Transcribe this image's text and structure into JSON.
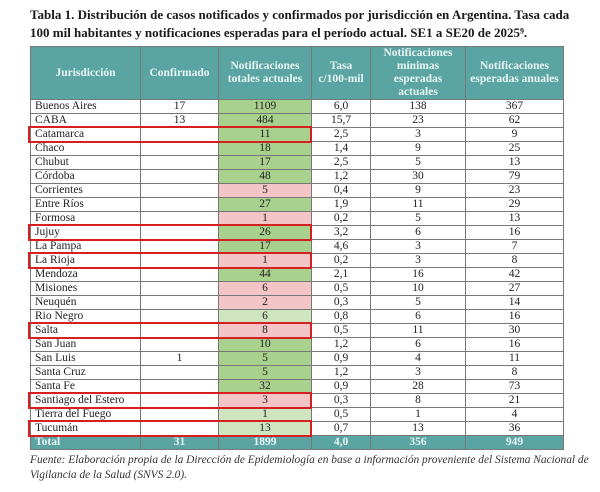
{
  "title": "Tabla 1. Distribución de casos notificados y confirmados por jurisdicción en Argentina. Tasa cada 100 mil habitantes y notificaciones esperadas para el período actual. SE1 a SE20 de 2025⁹.",
  "headers": [
    "Jurisdicción",
    "Confirmado",
    "Notificaciones totales actuales",
    "Tasa c/100-mil",
    "Notificaciones mínimas esperadas actuales",
    "Notificaciones esperadas anuales"
  ],
  "rows": [
    {
      "name": "Buenos Aires",
      "conf": "17",
      "notif": "1109",
      "status": "green",
      "tasa": "6,0",
      "min": "138",
      "anual": "367",
      "highlight": false
    },
    {
      "name": "CABA",
      "conf": "13",
      "notif": "484",
      "status": "green",
      "tasa": "15,7",
      "min": "23",
      "anual": "62",
      "highlight": false
    },
    {
      "name": "Catamarca",
      "conf": "",
      "notif": "11",
      "status": "green",
      "tasa": "2,5",
      "min": "3",
      "anual": "9",
      "highlight": true
    },
    {
      "name": "Chaco",
      "conf": "",
      "notif": "18",
      "status": "green",
      "tasa": "1,4",
      "min": "9",
      "anual": "25",
      "highlight": false
    },
    {
      "name": "Chubut",
      "conf": "",
      "notif": "17",
      "status": "green",
      "tasa": "2,5",
      "min": "5",
      "anual": "13",
      "highlight": false
    },
    {
      "name": "Córdoba",
      "conf": "",
      "notif": "48",
      "status": "green",
      "tasa": "1,2",
      "min": "30",
      "anual": "79",
      "highlight": false
    },
    {
      "name": "Corrientes",
      "conf": "",
      "notif": "5",
      "status": "red",
      "tasa": "0,4",
      "min": "9",
      "anual": "23",
      "highlight": false
    },
    {
      "name": "Entre Ríos",
      "conf": "",
      "notif": "27",
      "status": "green",
      "tasa": "1,9",
      "min": "11",
      "anual": "29",
      "highlight": false
    },
    {
      "name": "Formosa",
      "conf": "",
      "notif": "1",
      "status": "red",
      "tasa": "0,2",
      "min": "5",
      "anual": "13",
      "highlight": false
    },
    {
      "name": "Jujuy",
      "conf": "",
      "notif": "26",
      "status": "green",
      "tasa": "3,2",
      "min": "6",
      "anual": "16",
      "highlight": true
    },
    {
      "name": "La Pampa",
      "conf": "",
      "notif": "17",
      "status": "green",
      "tasa": "4,6",
      "min": "3",
      "anual": "7",
      "highlight": false
    },
    {
      "name": "La Rioja",
      "conf": "",
      "notif": "1",
      "status": "red",
      "tasa": "0,2",
      "min": "3",
      "anual": "8",
      "highlight": true
    },
    {
      "name": "Mendoza",
      "conf": "",
      "notif": "44",
      "status": "green",
      "tasa": "2,1",
      "min": "16",
      "anual": "42",
      "highlight": false
    },
    {
      "name": "Misiones",
      "conf": "",
      "notif": "6",
      "status": "red",
      "tasa": "0,5",
      "min": "10",
      "anual": "27",
      "highlight": false
    },
    {
      "name": "Neuquén",
      "conf": "",
      "notif": "2",
      "status": "red",
      "tasa": "0,3",
      "min": "5",
      "anual": "14",
      "highlight": false
    },
    {
      "name": "Rio Negro",
      "conf": "",
      "notif": "6",
      "status": "light",
      "tasa": "0,8",
      "min": "6",
      "anual": "16",
      "highlight": false
    },
    {
      "name": "Salta",
      "conf": "",
      "notif": "8",
      "status": "red",
      "tasa": "0,5",
      "min": "11",
      "anual": "30",
      "highlight": true
    },
    {
      "name": "San Juan",
      "conf": "",
      "notif": "10",
      "status": "green",
      "tasa": "1,2",
      "min": "6",
      "anual": "16",
      "highlight": false
    },
    {
      "name": "San Luis",
      "conf": "1",
      "notif": "5",
      "status": "green",
      "tasa": "0,9",
      "min": "4",
      "anual": "11",
      "highlight": false
    },
    {
      "name": "Santa Cruz",
      "conf": "",
      "notif": "5",
      "status": "green",
      "tasa": "1,2",
      "min": "3",
      "anual": "8",
      "highlight": false
    },
    {
      "name": "Santa Fe",
      "conf": "",
      "notif": "32",
      "status": "green",
      "tasa": "0,9",
      "min": "28",
      "anual": "73",
      "highlight": false
    },
    {
      "name": "Santiago del Estero",
      "conf": "",
      "notif": "3",
      "status": "red",
      "tasa": "0,3",
      "min": "8",
      "anual": "21",
      "highlight": true
    },
    {
      "name": "Tierra del Fuego",
      "conf": "",
      "notif": "1",
      "status": "light",
      "tasa": "0,5",
      "min": "1",
      "anual": "4",
      "highlight": false
    },
    {
      "name": "Tucumán",
      "conf": "",
      "notif": "13",
      "status": "light",
      "tasa": "0,7",
      "min": "13",
      "anual": "36",
      "highlight": true
    }
  ],
  "total": {
    "name": "Total",
    "conf": "31",
    "notif": "1899",
    "tasa": "4,0",
    "min": "356",
    "anual": "949"
  },
  "footnote": "Fuente: Elaboración propia de la Dirección de Epidemiología en base a información proveniente del Sistema Nacional de Vigilancia de la Salud (SNVS 2.0).",
  "colors": {
    "header": "#5aa5a3",
    "green": "#a9d18e",
    "light_green": "#cfe5bf",
    "red": "#f4c5c7",
    "highlight_border": "#d42020"
  }
}
